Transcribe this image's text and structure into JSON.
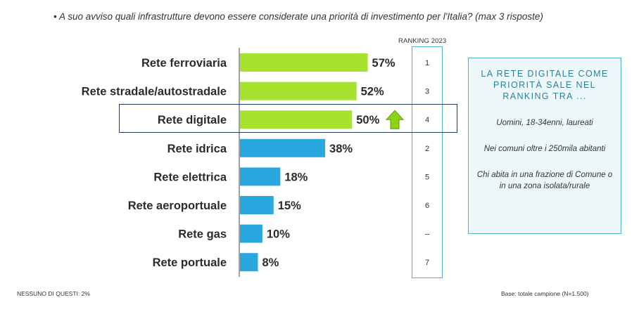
{
  "question": "• A suo avviso quali infrastrutture devono essere considerate una priorità di investimento per l'Italia? (max 3 risposte)",
  "ranking_header": "RANKING 2023",
  "highlight_category": "Rete digitale",
  "colors": {
    "green": "#a6e22e",
    "blue": "#29a8e0",
    "arrow_green": "#8cd317",
    "ranking_border": "#4fb3c8",
    "highlight_border": "#1f3b63"
  },
  "icons": {
    "trend": "up-arrow-icon"
  },
  "side_box": {
    "title": "LA RETE DIGITALE COME PRIORITÀ SALE NEL RANKING TRA ...",
    "items": [
      "Uomini, 18-34enni, laureati",
      "Nei comuni oltre i 250mila abitanti",
      "Chi abita in una frazione di Comune o in una zona isolata/rurale"
    ]
  },
  "footer": {
    "left": "NESSUNO DI QUESTI: 2%",
    "right": "Base: totale campione (N=1.500)"
  },
  "chart_data": {
    "type": "bar",
    "orientation": "horizontal",
    "categories": [
      "Rete ferroviaria",
      "Rete stradale/autostradale",
      "Rete digitale",
      "Rete idrica",
      "Rete elettrica",
      "Rete aeroportuale",
      "Rete gas",
      "Rete portuale"
    ],
    "values": [
      57,
      52,
      50,
      38,
      18,
      15,
      10,
      8
    ],
    "value_labels": [
      "57%",
      "52%",
      "50%",
      "38%",
      "18%",
      "15%",
      "10%",
      "8%"
    ],
    "bar_colors": [
      "#a6e22e",
      "#a6e22e",
      "#a6e22e",
      "#29a8e0",
      "#29a8e0",
      "#29a8e0",
      "#29a8e0",
      "#29a8e0"
    ],
    "ranking_2023": [
      "1",
      "3",
      "4",
      "2",
      "5",
      "6",
      "--",
      "7"
    ],
    "unit": "%",
    "xlim": [
      0,
      100
    ],
    "grid": false,
    "legend": "none"
  }
}
